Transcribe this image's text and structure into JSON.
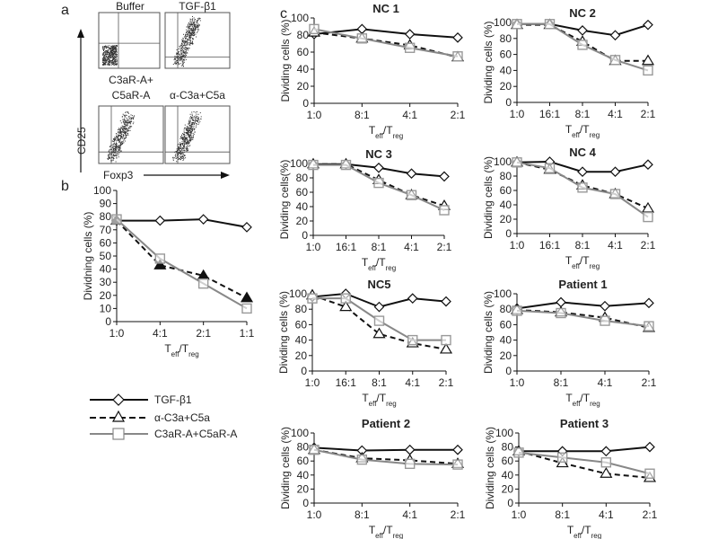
{
  "panel_labels": {
    "a": "a",
    "b": "b",
    "c": "c"
  },
  "flow": {
    "plots": [
      "Buffer",
      "TGF-β1",
      "C3aR-A+\nC5aR-A",
      "α-C3a+C5a"
    ],
    "label_top_left": "Buffer",
    "label_top_right": "TGF-β1",
    "label_bottom_left_1": "C3aR-A+",
    "label_bottom_left_2": "C5aR-A",
    "label_bottom_right": "α-C3a+C5a",
    "y_axis": "CD25",
    "x_axis": "Foxp3"
  },
  "legend": {
    "items": [
      {
        "label": "TGF-β1",
        "marker": "diamond",
        "line": "solid",
        "color": "#111111"
      },
      {
        "label": "α-C3a+C5a",
        "marker": "triangle",
        "line": "dashed",
        "color": "#111111"
      },
      {
        "label": "C3aR-A+C5aR-A",
        "marker": "square",
        "line": "solid",
        "color": "#888888"
      }
    ]
  },
  "chart_data": [
    {
      "id": "b",
      "type": "line",
      "title": "",
      "ylabel": "Dividning cells (%)",
      "xlabel": [
        "T",
        "eff",
        "/T",
        "reg"
      ],
      "categories": [
        "1:0",
        "4:1",
        "2:1",
        "1:1"
      ],
      "ylim": [
        0,
        100
      ],
      "yticks": [
        0,
        10,
        20,
        30,
        40,
        50,
        60,
        70,
        80,
        90,
        100
      ],
      "series": [
        {
          "name": "TGF-β1",
          "values": [
            77,
            77,
            78,
            72
          ]
        },
        {
          "name": "α-C3a+C5a",
          "values": [
            77,
            43,
            35,
            18
          ],
          "filled": true
        },
        {
          "name": "C3aR-A+C5aR-A",
          "values": [
            78,
            48,
            29,
            10
          ]
        }
      ]
    },
    {
      "id": "nc1",
      "type": "line",
      "title": "NC 1",
      "ylabel": "Dividing cells (%)",
      "xlabel": [
        "T",
        "eff",
        "/T",
        "reg"
      ],
      "categories": [
        "1:0",
        "8:1",
        "4:1",
        "2:1"
      ],
      "ylim": [
        0,
        100
      ],
      "yticks": [
        0,
        20,
        40,
        60,
        80,
        100
      ],
      "series": [
        {
          "name": "TGF-β1",
          "values": [
            81,
            87,
            81,
            77
          ]
        },
        {
          "name": "α-C3a+C5a",
          "values": [
            83,
            76,
            68,
            54
          ]
        },
        {
          "name": "C3aR-A+C5aR-A",
          "values": [
            87,
            76,
            65,
            55
          ]
        }
      ]
    },
    {
      "id": "nc2",
      "type": "line",
      "title": "NC 2",
      "ylabel": "Dividing cells (%)",
      "xlabel": [
        "T",
        "eff",
        "/T",
        "reg"
      ],
      "categories": [
        "1:0",
        "16:1",
        "8:1",
        "4:1",
        "2:1"
      ],
      "ylim": [
        0,
        100
      ],
      "yticks": [
        0,
        20,
        40,
        60,
        80,
        100
      ],
      "series": [
        {
          "name": "TGF-β1",
          "values": [
            98,
            98,
            90,
            84,
            97
          ]
        },
        {
          "name": "α-C3a+C5a",
          "values": [
            97,
            97,
            76,
            52,
            52
          ]
        },
        {
          "name": "C3aR-A+C5aR-A",
          "values": [
            98,
            98,
            72,
            53,
            40
          ]
        }
      ]
    },
    {
      "id": "nc3",
      "type": "line",
      "title": "NC 3",
      "ylabel": "Dividing cells(%)",
      "xlabel": [
        "T",
        "eff",
        "/T",
        "reg"
      ],
      "categories": [
        "1:0",
        "16:1",
        "8:1",
        "4:1",
        "2:1"
      ],
      "ylim": [
        0,
        100
      ],
      "yticks": [
        0,
        20,
        40,
        60,
        80,
        100
      ],
      "series": [
        {
          "name": "TGF-β1",
          "values": [
            99,
            99,
            94,
            86,
            82
          ]
        },
        {
          "name": "α-C3a+C5a",
          "values": [
            99,
            99,
            77,
            56,
            41
          ]
        },
        {
          "name": "C3aR-A+C5aR-A",
          "values": [
            98,
            98,
            73,
            56,
            35
          ]
        }
      ]
    },
    {
      "id": "nc4",
      "type": "line",
      "title": "NC 4",
      "ylabel": "Dividing cells (%)",
      "xlabel": [
        "T",
        "eff",
        "/T",
        "reg"
      ],
      "categories": [
        "1:0",
        "16:1",
        "8:1",
        "4:1",
        "2:1"
      ],
      "ylim": [
        0,
        100
      ],
      "yticks": [
        0,
        20,
        40,
        60,
        80,
        100
      ],
      "series": [
        {
          "name": "TGF-β1",
          "values": [
            99,
            100,
            86,
            86,
            96
          ]
        },
        {
          "name": "α-C3a+C5a",
          "values": [
            99,
            89,
            67,
            55,
            35
          ]
        },
        {
          "name": "C3aR-A+C5aR-A",
          "values": [
            99,
            91,
            64,
            55,
            23
          ]
        }
      ]
    },
    {
      "id": "nc5",
      "type": "line",
      "title": "NC5",
      "ylabel": "Dividing cells (%)",
      "xlabel": [
        "T",
        "eff",
        "/T",
        "reg"
      ],
      "categories": [
        "1:0",
        "16:1",
        "8:1",
        "4:1",
        "2:1"
      ],
      "ylim": [
        0,
        100
      ],
      "yticks": [
        0,
        20,
        40,
        60,
        80,
        100
      ],
      "series": [
        {
          "name": "TGF-β1",
          "values": [
            96,
            100,
            83,
            94,
            90
          ]
        },
        {
          "name": "α-C3a+C5a",
          "values": [
            98,
            83,
            48,
            36,
            28
          ]
        },
        {
          "name": "C3aR-A+C5aR-A",
          "values": [
            94,
            94,
            65,
            40,
            40
          ]
        }
      ]
    },
    {
      "id": "p1",
      "type": "line",
      "title": "Patient 1",
      "ylabel": "Dividing cells (%)",
      "xlabel": [
        "T",
        "eff",
        "/T",
        "reg"
      ],
      "categories": [
        "1:0",
        "8:1",
        "4:1",
        "2:1"
      ],
      "ylim": [
        0,
        100
      ],
      "yticks": [
        0,
        20,
        40,
        60,
        80,
        100
      ],
      "series": [
        {
          "name": "TGF-β1",
          "values": [
            81,
            89,
            84,
            88
          ]
        },
        {
          "name": "α-C3a+C5a",
          "values": [
            79,
            76,
            69,
            56
          ]
        },
        {
          "name": "C3aR-A+C5aR-A",
          "values": [
            78,
            75,
            65,
            58
          ]
        }
      ]
    },
    {
      "id": "p2",
      "type": "line",
      "title": "Patient 2",
      "ylabel": "Dividing cells (%)",
      "xlabel": [
        "T",
        "eff",
        "/T",
        "reg"
      ],
      "categories": [
        "1:0",
        "8:1",
        "4:1",
        "2:1"
      ],
      "ylim": [
        0,
        100
      ],
      "yticks": [
        0,
        20,
        40,
        60,
        80,
        100
      ],
      "series": [
        {
          "name": "TGF-β1",
          "values": [
            79,
            75,
            76,
            76
          ]
        },
        {
          "name": "α-C3a+C5a",
          "values": [
            76,
            64,
            61,
            56
          ]
        },
        {
          "name": "C3aR-A+C5aR-A",
          "values": [
            76,
            62,
            56,
            55
          ]
        }
      ]
    },
    {
      "id": "p3",
      "type": "line",
      "title": "Patient 3",
      "ylabel": "Dividing cells (%)",
      "xlabel": [
        "T",
        "eff",
        "/T",
        "reg"
      ],
      "categories": [
        "1:0",
        "8:1",
        "4:1",
        "2:1"
      ],
      "ylim": [
        0,
        100
      ],
      "yticks": [
        0,
        20,
        40,
        60,
        80,
        100
      ],
      "series": [
        {
          "name": "TGF-β1",
          "values": [
            74,
            74,
            74,
            80
          ]
        },
        {
          "name": "α-C3a+C5a",
          "values": [
            74,
            57,
            42,
            36
          ]
        },
        {
          "name": "C3aR-A+C5aR-A",
          "values": [
            72,
            65,
            58,
            42
          ]
        }
      ]
    }
  ]
}
